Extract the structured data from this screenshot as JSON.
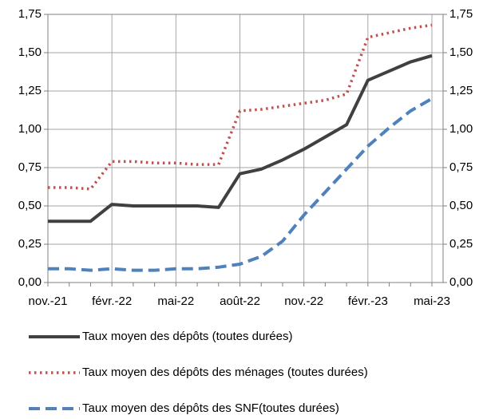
{
  "chart_data": {
    "type": "line",
    "categories": [
      "nov.-21",
      null,
      null,
      "févr.-22",
      null,
      null,
      "mai-22",
      null,
      null,
      "août-22",
      null,
      null,
      "nov.-22",
      null,
      null,
      "févr.-23",
      null,
      null,
      "mai-23"
    ],
    "series": [
      {
        "name": "Taux moyen des dépôts (toutes durées)",
        "color": "#404040",
        "style": "solid",
        "values": [
          0.4,
          0.4,
          0.4,
          0.51,
          0.5,
          0.5,
          0.5,
          0.5,
          0.49,
          0.71,
          0.74,
          0.8,
          0.87,
          0.95,
          1.03,
          1.32,
          1.38,
          1.44,
          1.48
        ]
      },
      {
        "name": "Taux moyen des dépôts des ménages (toutes durées)",
        "color": "#c0504d",
        "style": "dotted",
        "values": [
          0.62,
          0.62,
          0.61,
          0.79,
          0.79,
          0.78,
          0.78,
          0.77,
          0.77,
          1.12,
          1.13,
          1.15,
          1.17,
          1.19,
          1.23,
          1.6,
          1.63,
          1.66,
          1.68
        ]
      },
      {
        "name": "Taux moyen des dépôts des SNF(toutes durées)",
        "color": "#4f81bd",
        "style": "dashed",
        "values": [
          0.09,
          0.09,
          0.08,
          0.09,
          0.08,
          0.08,
          0.09,
          0.09,
          0.1,
          0.12,
          0.17,
          0.27,
          0.44,
          0.59,
          0.74,
          0.89,
          1.01,
          1.12,
          1.2
        ]
      }
    ],
    "ylim": [
      0,
      1.75
    ],
    "yticks": [
      {
        "value": 0,
        "label": "0,00"
      },
      {
        "value": 0.25,
        "label": "0,25"
      },
      {
        "value": 0.5,
        "label": "0,50"
      },
      {
        "value": 0.75,
        "label": "0,75"
      },
      {
        "value": 1,
        "label": "1,00"
      },
      {
        "value": 1.25,
        "label": "1,25"
      },
      {
        "value": 1.5,
        "label": "1,50"
      },
      {
        "value": 1.75,
        "label": "1,75"
      }
    ],
    "y2lim": [
      0,
      1.75
    ],
    "y2ticks": [
      {
        "value": 0,
        "label": "0,00"
      },
      {
        "value": 0.25,
        "label": "0,25"
      },
      {
        "value": 0.5,
        "label": "0,50"
      },
      {
        "value": 0.75,
        "label": "0,75"
      },
      {
        "value": 1,
        "label": "1,00"
      },
      {
        "value": 1.25,
        "label": "1,25"
      },
      {
        "value": 1.5,
        "label": "1,50"
      },
      {
        "value": 1.75,
        "label": "1,75"
      }
    ],
    "grid": true,
    "legend": "bottom"
  }
}
